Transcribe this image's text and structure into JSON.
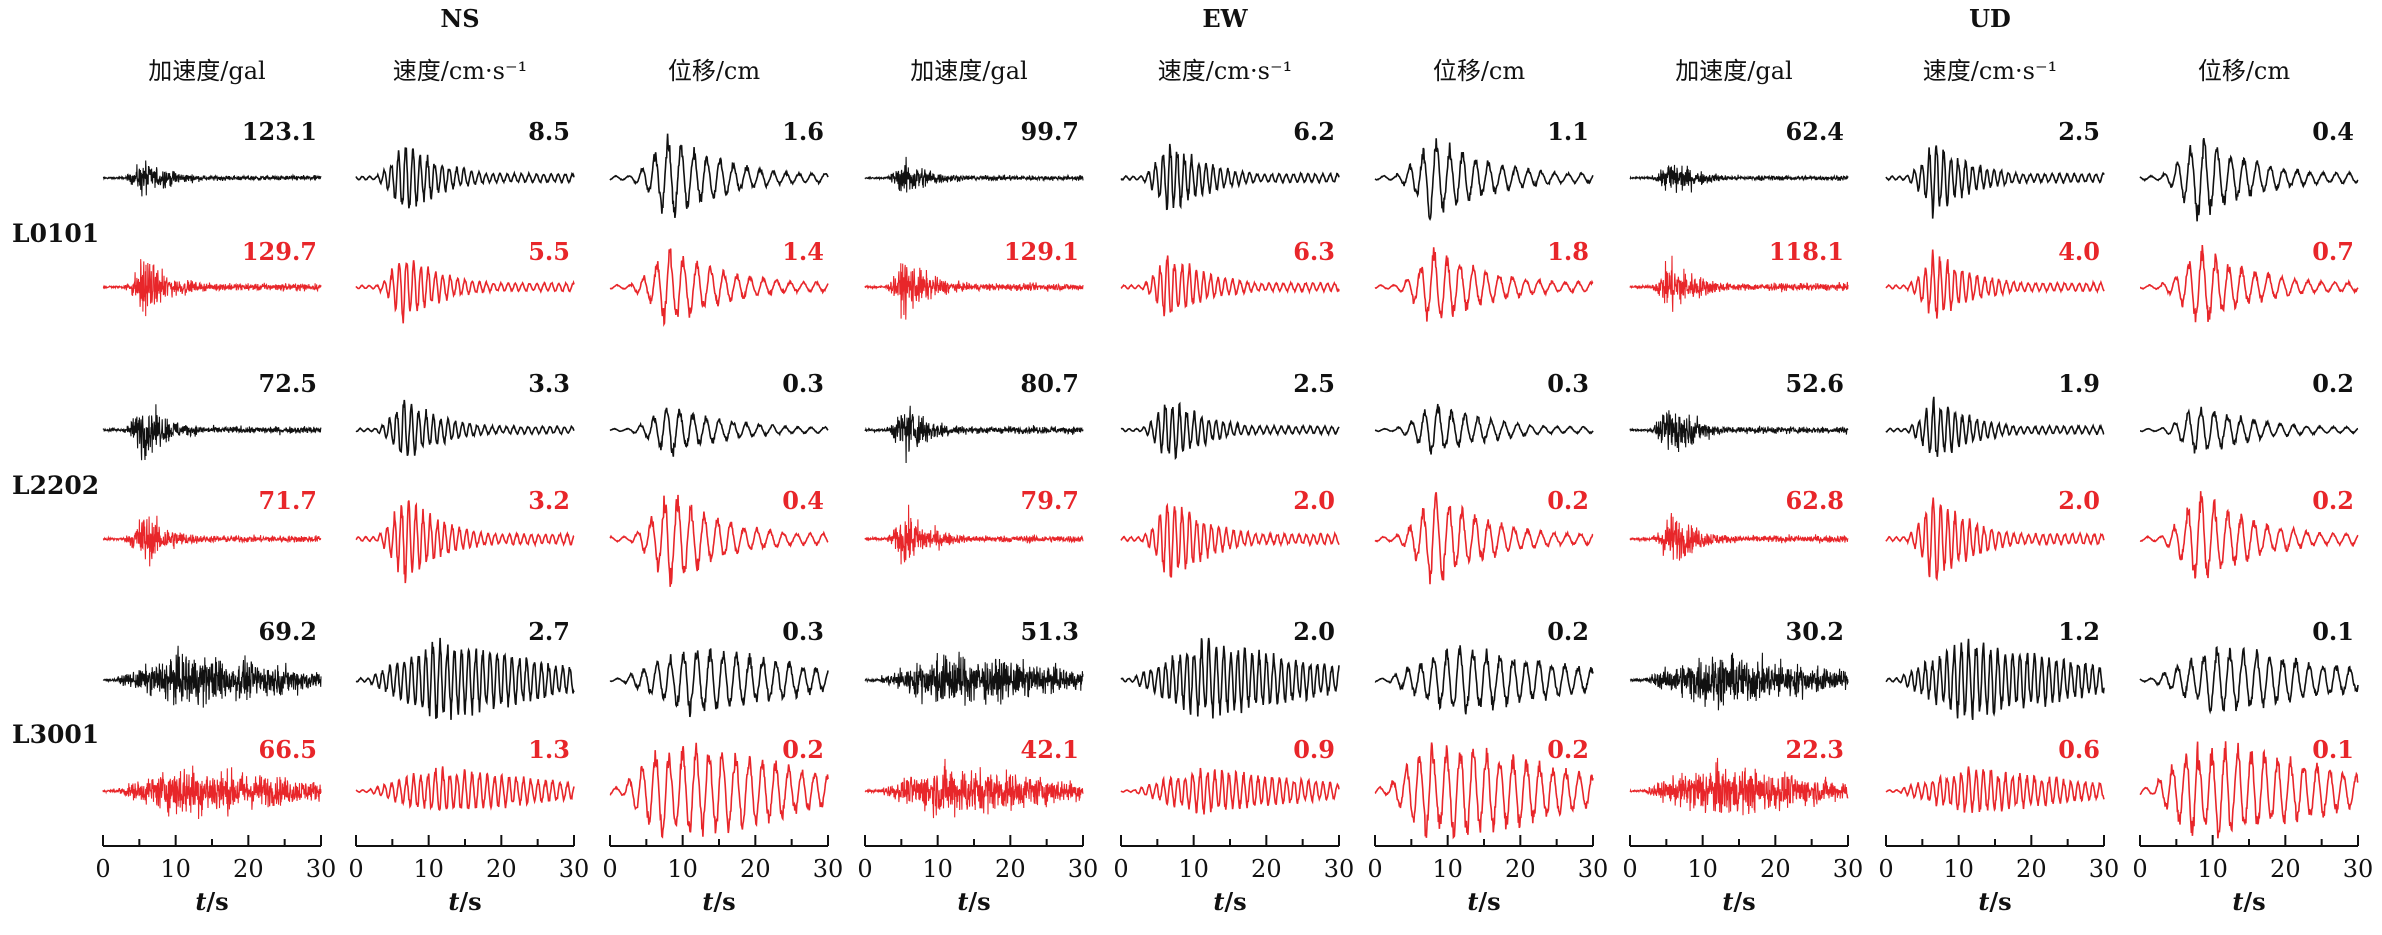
{
  "colors": {
    "recorded": "#111111",
    "simulated": "#e8262a"
  },
  "components": [
    "NS",
    "EW",
    "UD"
  ],
  "quantities": [
    "加速度/gal",
    "速度/cm·s⁻¹",
    "位移/cm",
    "加速度/gal",
    "速度/cm·s⁻¹",
    "位移/cm",
    "加速度/gal",
    "速度/cm·s⁻¹",
    "位移/cm"
  ],
  "stations": [
    "L0101",
    "L2202",
    "L3001"
  ],
  "x_axis_label": "t/s",
  "chart_data": {
    "type": "line",
    "xlim": [
      0,
      30
    ],
    "xticks": [
      "0",
      "10",
      "20",
      "30"
    ],
    "columns": [
      "NS 加速度/gal",
      "NS 速度/cm·s⁻¹",
      "NS 位移/cm",
      "EW 加速度/gal",
      "EW 速度/cm·s⁻¹",
      "EW 位移/cm",
      "UD 加速度/gal",
      "UD 速度/cm·s⁻¹",
      "UD 位移/cm"
    ],
    "peaks": {
      "L0101": {
        "recorded": [
          "123.1",
          "8.5",
          "1.6",
          "99.7",
          "6.2",
          "1.1",
          "62.4",
          "2.5",
          "0.4"
        ],
        "simulated": [
          "129.7",
          "5.5",
          "1.4",
          "129.1",
          "6.3",
          "1.8",
          "118.1",
          "4.0",
          "0.7"
        ]
      },
      "L2202": {
        "recorded": [
          "72.5",
          "3.3",
          "0.3",
          "80.7",
          "2.5",
          "0.3",
          "52.6",
          "1.9",
          "0.2"
        ],
        "simulated": [
          "71.7",
          "3.2",
          "0.4",
          "79.7",
          "2.0",
          "0.2",
          "62.8",
          "2.0",
          "0.2"
        ]
      },
      "L3001": {
        "recorded": [
          "69.2",
          "2.7",
          "0.3",
          "51.3",
          "2.0",
          "0.2",
          "30.2",
          "1.2",
          "0.1"
        ],
        "simulated": [
          "66.5",
          "1.3",
          "0.2",
          "42.1",
          "0.9",
          "0.2",
          "22.3",
          "0.6",
          "0.1"
        ]
      }
    }
  }
}
